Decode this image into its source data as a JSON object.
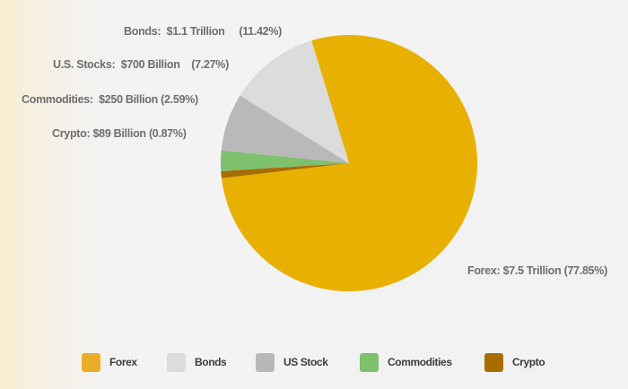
{
  "chart_data": {
    "type": "pie",
    "title": "",
    "categories": [
      "Forex",
      "Crypto",
      "Commodities",
      "U.S. Stocks",
      "Bonds"
    ],
    "values_usd": [
      "$7.5 Trillion",
      "$89 Billion",
      "$250 Billion",
      "$700 Billion",
      "$1.1 Trillion"
    ],
    "values": [
      77.85,
      0.87,
      2.59,
      7.27,
      11.42
    ],
    "colors": [
      "#e8b000",
      "#a86c00",
      "#7dc06e",
      "#b9b9b9",
      "#dcdcdc"
    ],
    "start_angle_deg": -17,
    "legend": {
      "position": "bottom",
      "entries": [
        {
          "label": "Forex",
          "color": "#e8ae2a"
        },
        {
          "label": "Bonds",
          "color": "#dcdcdc"
        },
        {
          "label": "US Stock",
          "color": "#b7b7b7"
        },
        {
          "label": "Commodities",
          "color": "#7dc06e"
        },
        {
          "label": "Crypto",
          "color": "#a86c00"
        }
      ]
    }
  },
  "labels": {
    "bonds": {
      "name": "Bonds:",
      "value": "$1.1 Trillion",
      "pct": "(11.42%)"
    },
    "us_stocks": {
      "name": "U.S. Stocks:",
      "value": "$700 Billion",
      "pct": "(7.27%)"
    },
    "commodities": {
      "name": "Commodities:",
      "value": "$250 Billion",
      "pct": "(2.59%)"
    },
    "crypto": {
      "name": "Crypto:",
      "value": "$89 Billion",
      "pct": "(0.87%)"
    },
    "forex": {
      "name": "Forex:",
      "value": "$7.5 Trillion",
      "pct": "(77.85%)"
    }
  }
}
